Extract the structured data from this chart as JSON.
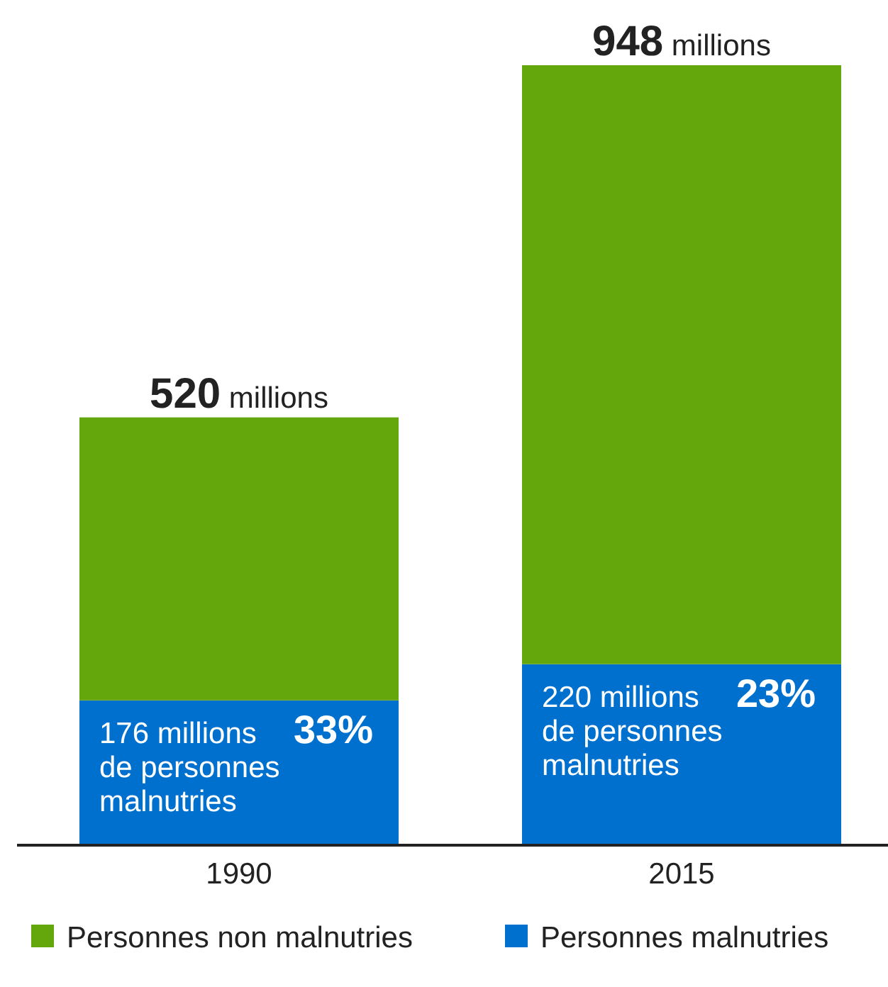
{
  "chart_data": {
    "type": "bar",
    "categories": [
      "1990",
      "2015"
    ],
    "stacked": true,
    "series": [
      {
        "name": "Personnes malnutries",
        "color": "#0070cf",
        "values": [
          176,
          220
        ],
        "value_labels": [
          "176 millions",
          "220 millions"
        ]
      },
      {
        "name": "Personnes non malnutries",
        "color": "#63a70d",
        "values": [
          344,
          728
        ]
      }
    ],
    "totals": [
      "520 millions",
      "948 millions"
    ],
    "annotations": [
      {
        "text": "33%",
        "x": "1990",
        "y": 176
      },
      {
        "text": "de personnes\nmalnutries",
        "x": "1990",
        "y": 176
      },
      {
        "text": "23%",
        "x": "2015",
        "y": 220
      },
      {
        "text": "de personnes\nmalnutries",
        "x": "2015",
        "y": 220
      }
    ],
    "legend": "bottom"
  }
}
